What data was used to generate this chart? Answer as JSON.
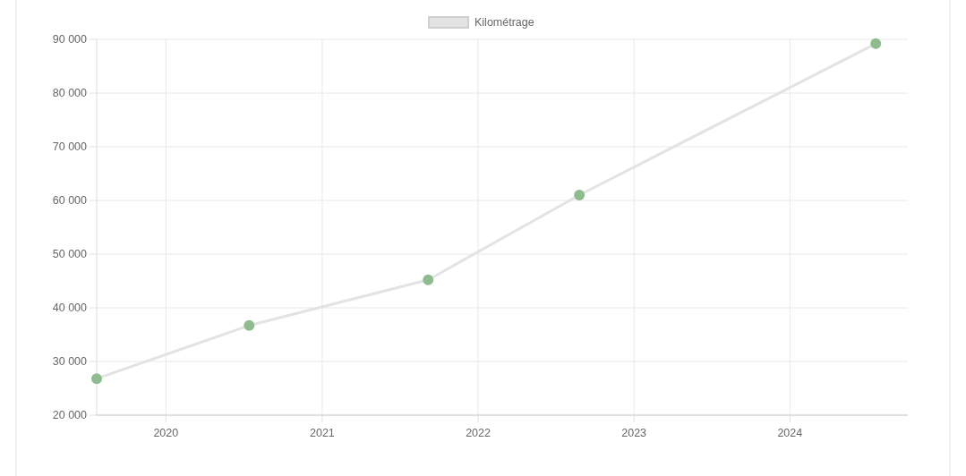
{
  "chart_data": {
    "type": "line",
    "x": [
      "2019-07-23",
      "2020-07-14",
      "2021-09-06",
      "2022-08-26",
      "2024-07-20"
    ],
    "series": [
      {
        "name": "Kilométrage",
        "color": "#e3e3e3",
        "colors": [
          "#8fbc8f",
          "#8fbc8f",
          "#8fbc8f",
          "#8fbc8f",
          "#8fbc8f"
        ],
        "values": [
          26800,
          36700,
          45200,
          61000,
          89200
        ]
      }
    ],
    "xlim": [
      "2019-07-23",
      "2024-10-03"
    ],
    "xticks": [
      "2020",
      "2021",
      "2022",
      "2023",
      "2024"
    ],
    "ylim": [
      20000,
      90000
    ],
    "yticks": [
      {
        "value": 20000,
        "label": "20 000"
      },
      {
        "value": 30000,
        "label": "30 000"
      },
      {
        "value": 40000,
        "label": "40 000"
      },
      {
        "value": 50000,
        "label": "50 000"
      },
      {
        "value": 60000,
        "label": "60 000"
      },
      {
        "value": 70000,
        "label": "70 000"
      },
      {
        "value": 80000,
        "label": "80 000"
      },
      {
        "value": 90000,
        "label": "90 000"
      }
    ],
    "grid": true,
    "legend": "top",
    "marker": "circle",
    "line_style": "solid"
  }
}
